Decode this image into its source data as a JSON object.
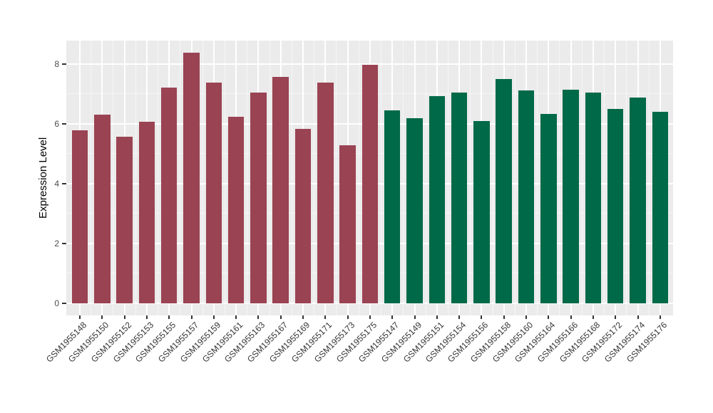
{
  "chart_data": {
    "type": "bar",
    "title": "",
    "xlabel": "",
    "ylabel": "Expression Level",
    "ylim": [
      -0.42,
      8.8
    ],
    "yticks": [
      0,
      2,
      4,
      6,
      8
    ],
    "yticks_minor": [
      1,
      3,
      5,
      7
    ],
    "grid": "on",
    "legend": "none",
    "panel_bg": "#EBEBEB",
    "grid_major_color": "#FFFFFF",
    "groups": [
      {
        "name": "group-red",
        "color": "#9A4352"
      },
      {
        "name": "group-green",
        "color": "#006948"
      }
    ],
    "categories": [
      "GSM1955148",
      "GSM1955150",
      "GSM1955152",
      "GSM1955153",
      "GSM1955155",
      "GSM1955157",
      "GSM1955159",
      "GSM1955161",
      "GSM1955163",
      "GSM1955167",
      "GSM1955169",
      "GSM1955171",
      "GSM1955173",
      "GSM1955175",
      "GSM1955147",
      "GSM1955149",
      "GSM1955151",
      "GSM1955154",
      "GSM1955156",
      "GSM1955158",
      "GSM1955160",
      "GSM1955164",
      "GSM1955166",
      "GSM1955168",
      "GSM1955172",
      "GSM1955174",
      "GSM1955176"
    ],
    "values": [
      5.78,
      6.3,
      5.58,
      6.08,
      7.21,
      8.37,
      7.37,
      6.25,
      7.04,
      7.56,
      5.84,
      7.39,
      5.29,
      7.97,
      6.45,
      6.19,
      6.93,
      7.04,
      6.09,
      7.49,
      7.13,
      6.34,
      7.14,
      7.04,
      6.49,
      6.88,
      6.4
    ],
    "bar_groups": [
      0,
      0,
      0,
      0,
      0,
      0,
      0,
      0,
      0,
      0,
      0,
      0,
      0,
      0,
      1,
      1,
      1,
      1,
      1,
      1,
      1,
      1,
      1,
      1,
      1,
      1,
      1
    ]
  }
}
